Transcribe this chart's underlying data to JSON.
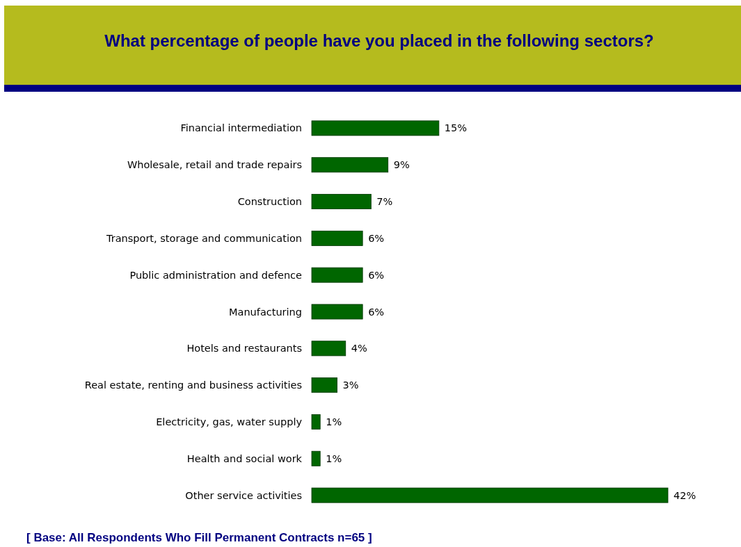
{
  "chart_data": {
    "type": "bar",
    "orientation": "horizontal",
    "title": "What percentage of  people have you placed in the following sectors?",
    "categories": [
      "Financial intermediation",
      "Wholesale, retail and trade repairs",
      "Construction",
      "Transport, storage and communication",
      "Public administration and defence",
      "Manufacturing",
      "Hotels and restaurants",
      "Real estate, renting and business activities",
      "Electricity, gas, water supply",
      "Health and social work",
      "Other service activities"
    ],
    "values": [
      15,
      9,
      7,
      6,
      6,
      6,
      4,
      3,
      1,
      1,
      42
    ],
    "value_labels": [
      "15%",
      "9%",
      "7%",
      "6%",
      "6%",
      "6%",
      "4%",
      "3%",
      "1%",
      "1%",
      "42%"
    ],
    "color": "#006600",
    "annotations": [
      "[ Base:  All Respondents Who Fill Permanent Contracts n=65 ]"
    ]
  }
}
